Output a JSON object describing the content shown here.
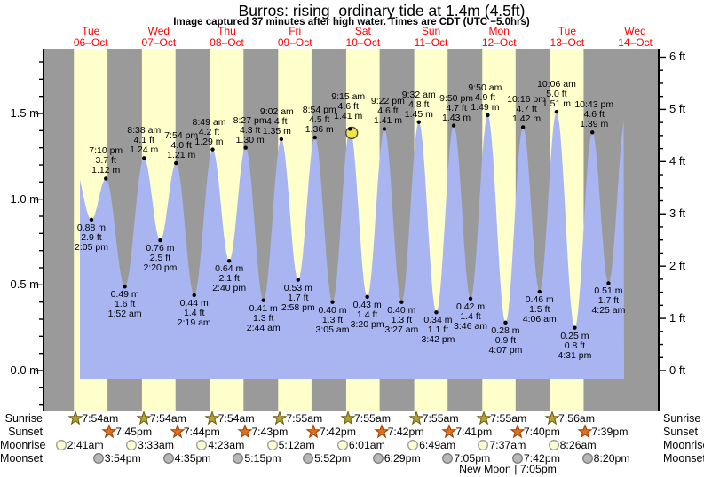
{
  "title": "Burros: rising  ordinary tide at 1.4m (4.5ft)",
  "subtitle": "Image captured 37 minutes after high water. Times are CDT (UTC −5.0hrs)",
  "days": [
    {
      "dow": "Tue",
      "date": "06–Oct"
    },
    {
      "dow": "Wed",
      "date": "07–Oct"
    },
    {
      "dow": "Thu",
      "date": "08–Oct"
    },
    {
      "dow": "Fri",
      "date": "09–Oct"
    },
    {
      "dow": "Sat",
      "date": "10–Oct"
    },
    {
      "dow": "Sun",
      "date": "11–Oct"
    },
    {
      "dow": "Mon",
      "date": "12–Oct"
    },
    {
      "dow": "Tue",
      "date": "13–Oct"
    },
    {
      "dow": "Wed",
      "date": "14–Oct"
    }
  ],
  "axes": {
    "left_labels": [
      "0.0 m",
      "0.5 m",
      "1.0 m",
      "1.5 m"
    ],
    "right_labels": [
      "0 ft",
      "1 ft",
      "2 ft",
      "3 ft",
      "4 ft",
      "5 ft",
      "6 ft"
    ]
  },
  "chart_data": {
    "type": "area",
    "title": "Burros: rising  ordinary tide at 1.4m (4.5ft)",
    "x_unit": "time, Oct 6 – Oct 14 (CDT)",
    "y_left": {
      "unit": "m",
      "ticks": [
        0,
        0.5,
        1.0,
        1.5
      ],
      "minor_step": 0.1
    },
    "y_right": {
      "unit": "ft",
      "ticks": [
        0,
        1,
        2,
        3,
        4,
        5,
        6
      ],
      "minor_step": 0.25
    },
    "tide_events": [
      {
        "d": 0,
        "time": "2:05 pm",
        "m": 0.88,
        "ft": 2.9,
        "type": "low"
      },
      {
        "d": 0,
        "time": "7:10 pm",
        "m": 1.12,
        "ft": 3.7,
        "type": "high"
      },
      {
        "d": 1,
        "time": "1:52 am",
        "m": 0.49,
        "ft": 1.6,
        "type": "low"
      },
      {
        "d": 1,
        "time": "8:38 am",
        "m": 1.24,
        "ft": 4.1,
        "type": "high"
      },
      {
        "d": 1,
        "time": "2:20 pm",
        "m": 0.76,
        "ft": 2.5,
        "type": "low"
      },
      {
        "d": 1,
        "time": "7:54 pm",
        "m": 1.21,
        "ft": 4.0,
        "type": "high"
      },
      {
        "d": 2,
        "time": "2:19 am",
        "m": 0.44,
        "ft": 1.4,
        "type": "low"
      },
      {
        "d": 2,
        "time": "8:49 am",
        "m": 1.29,
        "ft": 4.2,
        "type": "high"
      },
      {
        "d": 2,
        "time": "2:40 pm",
        "m": 0.64,
        "ft": 2.1,
        "type": "low"
      },
      {
        "d": 2,
        "time": "8:27 pm",
        "m": 1.3,
        "ft": 4.3,
        "type": "high"
      },
      {
        "d": 3,
        "time": "2:44 am",
        "m": 0.41,
        "ft": 1.3,
        "type": "low"
      },
      {
        "d": 3,
        "time": "9:02 am",
        "m": 1.35,
        "ft": 4.4,
        "type": "high"
      },
      {
        "d": 3,
        "time": "2:58 pm",
        "m": 0.53,
        "ft": 1.7,
        "type": "low"
      },
      {
        "d": 3,
        "time": "8:54 pm",
        "m": 1.36,
        "ft": 4.5,
        "type": "high"
      },
      {
        "d": 4,
        "time": "3:05 am",
        "m": 0.4,
        "ft": 1.3,
        "type": "low"
      },
      {
        "d": 4,
        "time": "9:15 am",
        "m": 1.41,
        "ft": 4.6,
        "type": "high",
        "current": true
      },
      {
        "d": 4,
        "time": "3:20 pm",
        "m": 0.43,
        "ft": 1.4,
        "type": "low"
      },
      {
        "d": 4,
        "time": "9:22 pm",
        "m": 1.41,
        "ft": 4.6,
        "type": "high"
      },
      {
        "d": 5,
        "time": "3:27 am",
        "m": 0.4,
        "ft": 1.3,
        "type": "low"
      },
      {
        "d": 5,
        "time": "9:32 am",
        "m": 1.45,
        "ft": 4.8,
        "type": "high"
      },
      {
        "d": 5,
        "time": "3:42 pm",
        "m": 0.34,
        "ft": 1.1,
        "type": "low"
      },
      {
        "d": 5,
        "time": "9:50 pm",
        "m": 1.43,
        "ft": 4.7,
        "type": "high"
      },
      {
        "d": 6,
        "time": "3:46 am",
        "m": 0.42,
        "ft": 1.4,
        "type": "low"
      },
      {
        "d": 6,
        "time": "9:50 am",
        "m": 1.49,
        "ft": 4.9,
        "type": "high"
      },
      {
        "d": 6,
        "time": "4:07 pm",
        "m": 0.28,
        "ft": 0.9,
        "type": "low"
      },
      {
        "d": 6,
        "time": "10:16 pm",
        "m": 1.42,
        "ft": 4.7,
        "type": "high"
      },
      {
        "d": 7,
        "time": "4:06 am",
        "m": 0.46,
        "ft": 1.5,
        "type": "low"
      },
      {
        "d": 7,
        "time": "10:06 am",
        "m": 1.51,
        "ft": 5.0,
        "type": "high"
      },
      {
        "d": 7,
        "time": "4:31 pm",
        "m": 0.25,
        "ft": 0.8,
        "type": "low"
      },
      {
        "d": 7,
        "time": "10:43 pm",
        "m": 1.39,
        "ft": 4.6,
        "type": "high"
      },
      {
        "d": 8,
        "time": "4:25 am",
        "m": 0.51,
        "ft": 1.7,
        "type": "low"
      }
    ],
    "current_marker": {
      "day_index": 4,
      "time": "9:15 am",
      "note": "37 minutes after high water"
    }
  },
  "almanac": {
    "rows": [
      {
        "label": "Sunrise",
        "icon": "sunrise-star-icon",
        "times": [
          "7:54am",
          "7:54am",
          "7:54am",
          "7:55am",
          "7:55am",
          "7:55am",
          "7:55am",
          "7:56am"
        ]
      },
      {
        "label": "Sunset",
        "icon": "sunset-star-icon",
        "times": [
          "7:45pm",
          "7:44pm",
          "7:43pm",
          "7:42pm",
          "7:42pm",
          "7:41pm",
          "7:40pm",
          "7:39pm"
        ]
      },
      {
        "label": "Moonrise",
        "icon": "moonrise-circle-icon",
        "times": [
          "2:41am",
          "3:33am",
          "4:23am",
          "5:12am",
          "6:01am",
          "6:49am",
          "7:37am",
          "8:26am"
        ]
      },
      {
        "label": "Moonset",
        "icon": "moonset-circle-icon",
        "times": [
          "3:54pm",
          "4:35pm",
          "5:15pm",
          "5:52pm",
          "6:29pm",
          "7:05pm",
          "7:42pm",
          "8:20pm"
        ]
      }
    ],
    "moon_phase": "New Moon | 7:05pm"
  },
  "colors": {
    "night_band": "#9a9a9a",
    "day_band": "#ffffcc",
    "tide_fill": "#a9b5f1",
    "date_text": "#ff0000",
    "axis": "#000000",
    "sunrise_star": "#b8a22c",
    "sunrise_star_edge": "#6b5e14",
    "sunset_star": "#e0711f",
    "sunset_star_edge": "#9c3d00",
    "moonrise_fill": "#ffffd0",
    "moonrise_edge": "#9a9a9a",
    "moonset_fill": "#b8b8b8",
    "moonset_edge": "#7d7d7d",
    "current_marker": "#f1e545",
    "current_marker_edge": "#4a4a4a"
  }
}
